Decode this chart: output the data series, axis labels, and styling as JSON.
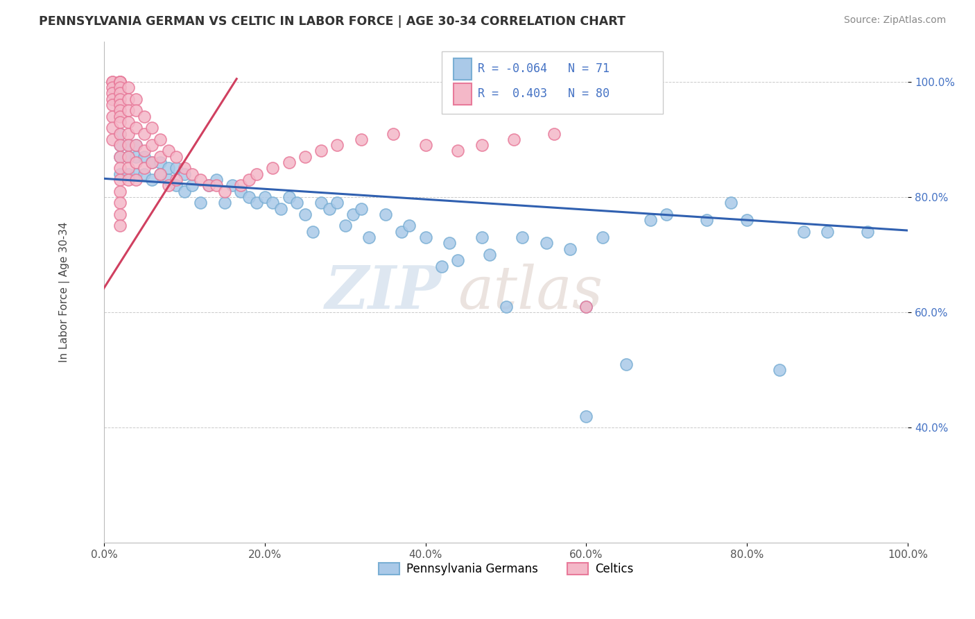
{
  "title": "PENNSYLVANIA GERMAN VS CELTIC IN LABOR FORCE | AGE 30-34 CORRELATION CHART",
  "source": "Source: ZipAtlas.com",
  "ylabel": "In Labor Force | Age 30-34",
  "watermark_zip": "ZIP",
  "watermark_atlas": "atlas",
  "blue_R": -0.064,
  "blue_N": 71,
  "pink_R": 0.403,
  "pink_N": 80,
  "xlim": [
    0.0,
    1.0
  ],
  "ylim": [
    0.2,
    1.07
  ],
  "xticks": [
    0.0,
    0.2,
    0.4,
    0.6,
    0.8,
    1.0
  ],
  "yticks": [
    0.4,
    0.6,
    0.8,
    1.0
  ],
  "xtick_labels": [
    "0.0%",
    "20.0%",
    "40.0%",
    "60.0%",
    "80.0%",
    "100.0%"
  ],
  "ytick_labels": [
    "40.0%",
    "60.0%",
    "80.0%",
    "100.0%"
  ],
  "legend_labels": [
    "Pennsylvania Germans",
    "Celtics"
  ],
  "blue_color": "#aac9e8",
  "blue_edge": "#7aafd4",
  "pink_color": "#f4b8c8",
  "pink_edge": "#e87a9a",
  "blue_line_color": "#3060b0",
  "pink_line_color": "#d04060",
  "background_color": "#ffffff",
  "blue_scatter_x": [
    0.02,
    0.02,
    0.02,
    0.02,
    0.03,
    0.03,
    0.03,
    0.04,
    0.04,
    0.04,
    0.05,
    0.05,
    0.06,
    0.06,
    0.07,
    0.07,
    0.08,
    0.08,
    0.09,
    0.09,
    0.1,
    0.1,
    0.11,
    0.12,
    0.13,
    0.14,
    0.15,
    0.16,
    0.17,
    0.18,
    0.19,
    0.2,
    0.21,
    0.22,
    0.23,
    0.24,
    0.25,
    0.26,
    0.27,
    0.28,
    0.29,
    0.3,
    0.31,
    0.32,
    0.33,
    0.35,
    0.37,
    0.38,
    0.4,
    0.42,
    0.43,
    0.44,
    0.47,
    0.48,
    0.5,
    0.52,
    0.55,
    0.58,
    0.6,
    0.6,
    0.62,
    0.65,
    0.68,
    0.7,
    0.75,
    0.78,
    0.8,
    0.84,
    0.87,
    0.9,
    0.95
  ],
  "blue_scatter_y": [
    0.84,
    0.87,
    0.89,
    0.91,
    0.84,
    0.87,
    0.89,
    0.84,
    0.87,
    0.89,
    0.84,
    0.87,
    0.83,
    0.86,
    0.84,
    0.86,
    0.83,
    0.85,
    0.82,
    0.85,
    0.81,
    0.84,
    0.82,
    0.79,
    0.82,
    0.83,
    0.79,
    0.82,
    0.81,
    0.8,
    0.79,
    0.8,
    0.79,
    0.78,
    0.8,
    0.79,
    0.77,
    0.74,
    0.79,
    0.78,
    0.79,
    0.75,
    0.77,
    0.78,
    0.73,
    0.77,
    0.74,
    0.75,
    0.73,
    0.68,
    0.72,
    0.69,
    0.73,
    0.7,
    0.61,
    0.73,
    0.72,
    0.71,
    0.61,
    0.42,
    0.73,
    0.51,
    0.76,
    0.77,
    0.76,
    0.79,
    0.76,
    0.5,
    0.74,
    0.74,
    0.74
  ],
  "pink_scatter_x": [
    0.01,
    0.01,
    0.01,
    0.01,
    0.01,
    0.01,
    0.01,
    0.01,
    0.01,
    0.02,
    0.02,
    0.02,
    0.02,
    0.02,
    0.02,
    0.02,
    0.02,
    0.02,
    0.02,
    0.02,
    0.02,
    0.02,
    0.02,
    0.02,
    0.02,
    0.02,
    0.02,
    0.02,
    0.02,
    0.03,
    0.03,
    0.03,
    0.03,
    0.03,
    0.03,
    0.03,
    0.03,
    0.03,
    0.04,
    0.04,
    0.04,
    0.04,
    0.04,
    0.04,
    0.05,
    0.05,
    0.05,
    0.05,
    0.06,
    0.06,
    0.06,
    0.07,
    0.07,
    0.07,
    0.08,
    0.08,
    0.09,
    0.09,
    0.1,
    0.11,
    0.12,
    0.13,
    0.14,
    0.15,
    0.17,
    0.18,
    0.19,
    0.21,
    0.23,
    0.25,
    0.27,
    0.29,
    0.32,
    0.36,
    0.4,
    0.44,
    0.47,
    0.51,
    0.56,
    0.6
  ],
  "pink_scatter_y": [
    1.0,
    1.0,
    0.99,
    0.98,
    0.97,
    0.96,
    0.94,
    0.92,
    0.9,
    1.0,
    1.0,
    1.0,
    1.0,
    0.99,
    0.98,
    0.97,
    0.96,
    0.95,
    0.94,
    0.93,
    0.91,
    0.89,
    0.87,
    0.85,
    0.83,
    0.81,
    0.79,
    0.77,
    0.75,
    0.99,
    0.97,
    0.95,
    0.93,
    0.91,
    0.89,
    0.87,
    0.85,
    0.83,
    0.97,
    0.95,
    0.92,
    0.89,
    0.86,
    0.83,
    0.94,
    0.91,
    0.88,
    0.85,
    0.92,
    0.89,
    0.86,
    0.9,
    0.87,
    0.84,
    0.88,
    0.82,
    0.87,
    0.83,
    0.85,
    0.84,
    0.83,
    0.82,
    0.82,
    0.81,
    0.82,
    0.83,
    0.84,
    0.85,
    0.86,
    0.87,
    0.88,
    0.89,
    0.9,
    0.91,
    0.89,
    0.88,
    0.89,
    0.9,
    0.91,
    0.61
  ],
  "blue_trend_x": [
    0.0,
    1.0
  ],
  "blue_trend_y": [
    0.832,
    0.742
  ],
  "pink_trend_x": [
    -0.01,
    0.165
  ],
  "pink_trend_y": [
    0.62,
    1.005
  ]
}
